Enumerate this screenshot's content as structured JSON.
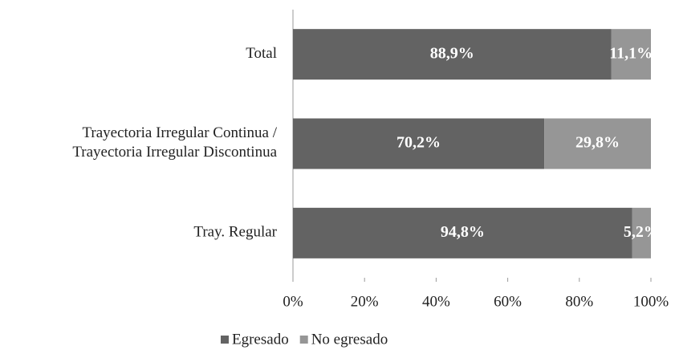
{
  "chart_data": {
    "type": "stacked_barh",
    "categories": [
      "Total",
      "Trayectoria Irregular Continua /\nTrayectoria Irregular Discontinua",
      "Tray. Regular"
    ],
    "series": [
      {
        "name": "Egresado",
        "color": "#636363",
        "values": [
          88.9,
          70.2,
          94.8
        ],
        "value_labels": [
          "88,9%",
          "70,2%",
          "94,8%"
        ]
      },
      {
        "name": "No egresado",
        "color": "#969696",
        "values": [
          11.1,
          29.8,
          5.2
        ],
        "value_labels": [
          "11,1%",
          "29,8%",
          "5,2%"
        ]
      }
    ],
    "xlim": [
      0,
      100
    ],
    "xticks": [
      {
        "value": 0,
        "label": "0%"
      },
      {
        "value": 20,
        "label": "20%"
      },
      {
        "value": 40,
        "label": "40%"
      },
      {
        "value": 60,
        "label": "60%"
      },
      {
        "value": 80,
        "label": "80%"
      },
      {
        "value": 100,
        "label": "100%"
      }
    ],
    "legend": "bottom"
  }
}
